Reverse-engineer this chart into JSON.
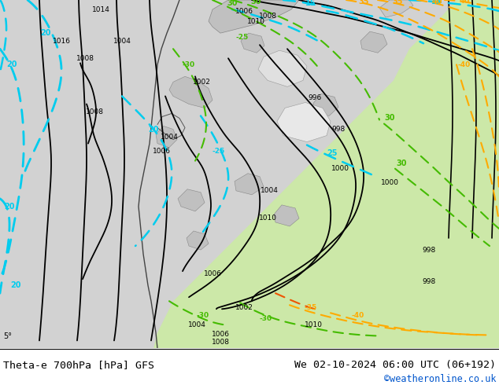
{
  "title_left": "Theta-e 700hPa [hPa] GFS",
  "title_right": "We 02-10-2024 06:00 UTC (06+192)",
  "credit": "©weatheronline.co.uk",
  "bg_gray": "#d0d0d0",
  "land_green": "#c8e8a8",
  "land_gray": "#b8b8b8",
  "white_patch": "#e8e8e8",
  "fig_width": 6.34,
  "fig_height": 4.9,
  "dpi": 100
}
